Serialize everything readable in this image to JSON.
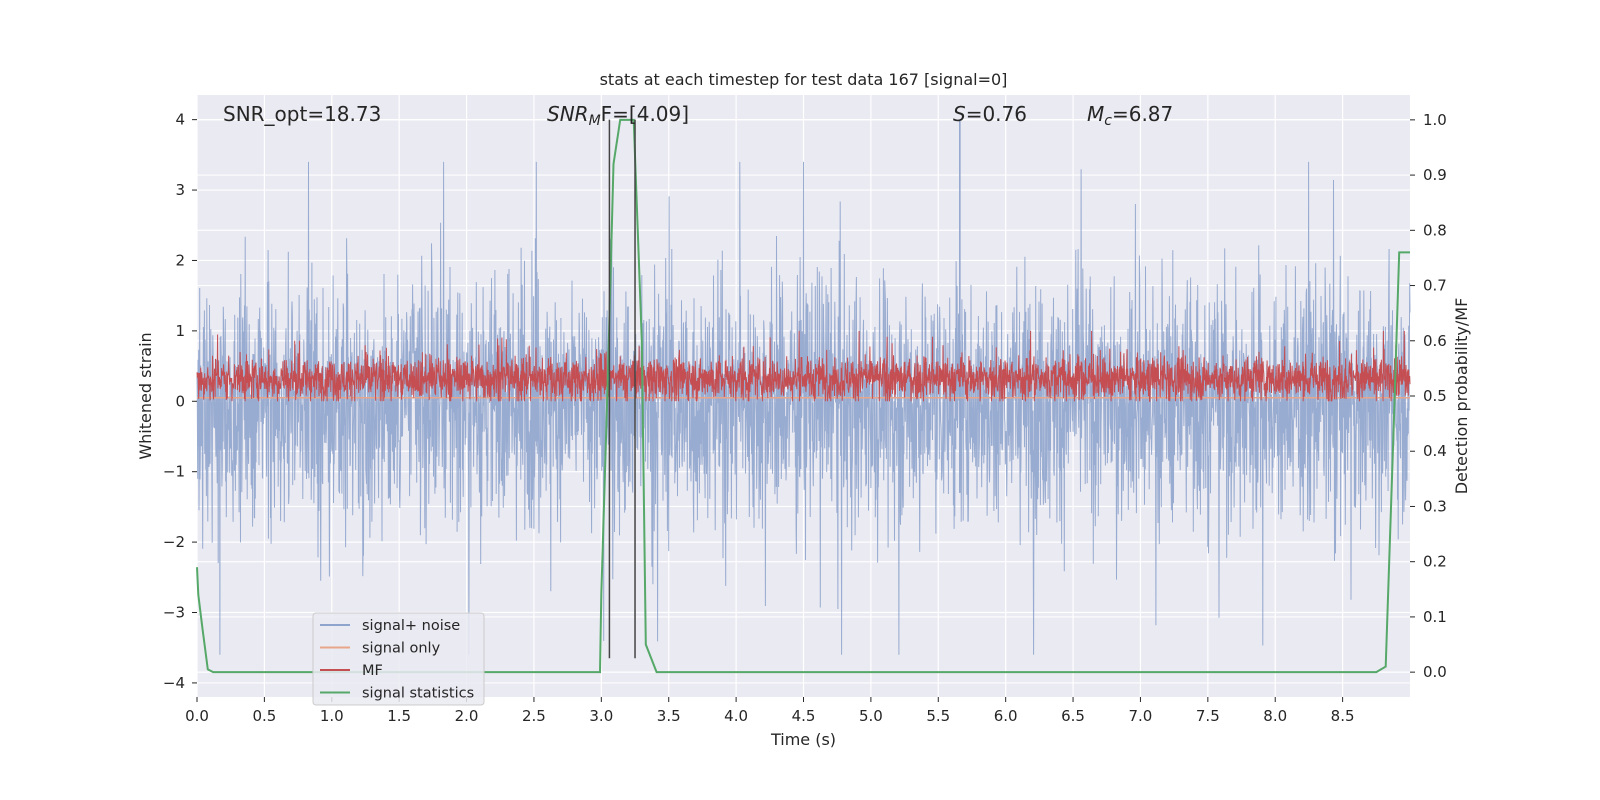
{
  "chart_data": {
    "type": "line",
    "title": "stats at each timestep for test data 167 [signal=0]",
    "xlabel": "Time (s)",
    "ylabel_left": "Whitened strain",
    "ylabel_right": "Detection probability/MF",
    "xlim": [
      0,
      9.0
    ],
    "ylim_left": [
      -4.2,
      4.35
    ],
    "ylim_right": [
      -0.045,
      1.045
    ],
    "x_ticks": [
      "0.0",
      "0.5",
      "1.0",
      "1.5",
      "2.0",
      "2.5",
      "3.0",
      "3.5",
      "4.0",
      "4.5",
      "5.0",
      "5.5",
      "6.0",
      "6.5",
      "7.0",
      "7.5",
      "8.0",
      "8.5"
    ],
    "y_left_ticks": [
      "4",
      "3",
      "2",
      "1",
      "0",
      "−1",
      "−2",
      "−3",
      "−4"
    ],
    "y_right_ticks": [
      "1.0",
      "0.9",
      "0.8",
      "0.7",
      "0.6",
      "0.5",
      "0.4",
      "0.3",
      "0.2",
      "0.1",
      "0.0"
    ],
    "grid": true,
    "legend_position": "lower-left",
    "annotations": {
      "snr_opt": "SNR_opt=18.73",
      "snr_mf_label": "SNR",
      "snr_mf_sub": "M",
      "snr_mf_value": "F=[4.09]",
      "s_label": "S",
      "s_value": "=0.76",
      "mc_label": "M",
      "mc_sub": "c",
      "mc_value": "=6.87"
    },
    "vertical_markers_x": [
      3.06,
      3.25
    ],
    "series": [
      {
        "name": "signal+ noise",
        "color": "#8fa4cc",
        "axis": "left",
        "envelope": "noise, roughly within ±2.5, peaks up to ~4.0 near t=5.65"
      },
      {
        "name": "signal only",
        "color": "#e8a58a",
        "axis": "left",
        "values_constant": 0.05
      },
      {
        "name": "MF",
        "color": "#c44e52",
        "axis": "left",
        "envelope": "noise, roughly between 0 and 0.8, peaks near 1.0"
      },
      {
        "name": "signal statistics",
        "color": "#55a868",
        "axis": "right",
        "x": [
          0.0,
          0.01,
          0.04,
          0.08,
          0.12,
          0.2,
          1.0,
          2.0,
          2.8,
          2.99,
          3.0,
          3.05,
          3.09,
          3.14,
          3.24,
          3.3,
          3.33,
          3.41,
          3.5,
          4.0,
          5.0,
          6.0,
          7.0,
          8.0,
          8.75,
          8.82,
          8.88,
          8.92,
          9.0
        ],
        "y": [
          0.19,
          0.14,
          0.08,
          0.005,
          0.0,
          0.0,
          0.0,
          0.0,
          0.0,
          0.0,
          0.14,
          0.55,
          0.92,
          1.0,
          1.0,
          0.6,
          0.05,
          0.0,
          0.0,
          0.0,
          0.0,
          0.0,
          0.0,
          0.0,
          0.0,
          0.01,
          0.45,
          0.76,
          0.76
        ]
      }
    ]
  }
}
